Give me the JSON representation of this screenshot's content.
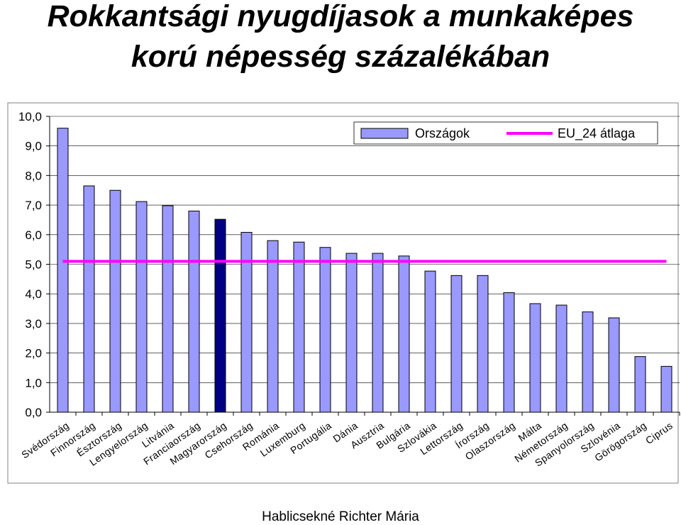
{
  "title_line1": "Rokkantsági nyugdíjasok a munkaképes",
  "title_line2": "korú népesség százalékában",
  "footer": "Hablicsekné Richter Mária",
  "chart_data": {
    "type": "bar",
    "categories": [
      "Svédország",
      "Finnország",
      "Észtország",
      "Lengyelország",
      "Litvánia",
      "Franciaország",
      "Magyarország",
      "Csehország",
      "Románia",
      "Luxemburg",
      "Portugália",
      "Dánia",
      "Ausztria",
      "Bulgária",
      "Szlovákia",
      "Lettország",
      "Írország",
      "Olaszország",
      "Málta",
      "Németország",
      "Spanyolország",
      "Szlovénia",
      "Görögország",
      "Ciprus"
    ],
    "series": [
      {
        "name": "Országok",
        "values": [
          9.6,
          7.65,
          7.5,
          7.12,
          6.98,
          6.8,
          6.52,
          6.08,
          5.8,
          5.75,
          5.57,
          5.37,
          5.37,
          5.28,
          4.77,
          4.62,
          4.62,
          4.04,
          3.67,
          3.62,
          3.39,
          3.19,
          1.88,
          1.55
        ]
      },
      {
        "name": "EU_24 átlaga",
        "value": 5.1
      }
    ],
    "highlight_category": "Magyarország",
    "ylim": [
      0,
      10
    ],
    "yticks": [
      "0,0",
      "1,0",
      "2,0",
      "3,0",
      "4,0",
      "5,0",
      "6,0",
      "7,0",
      "8,0",
      "9,0",
      "10,0"
    ],
    "grid": true,
    "legend_position": "top-right",
    "colors": {
      "bar": "#9999ff",
      "highlight": "#000080",
      "average_line": "#ff00ff",
      "grid": "#000000",
      "outline": "#000000"
    }
  }
}
